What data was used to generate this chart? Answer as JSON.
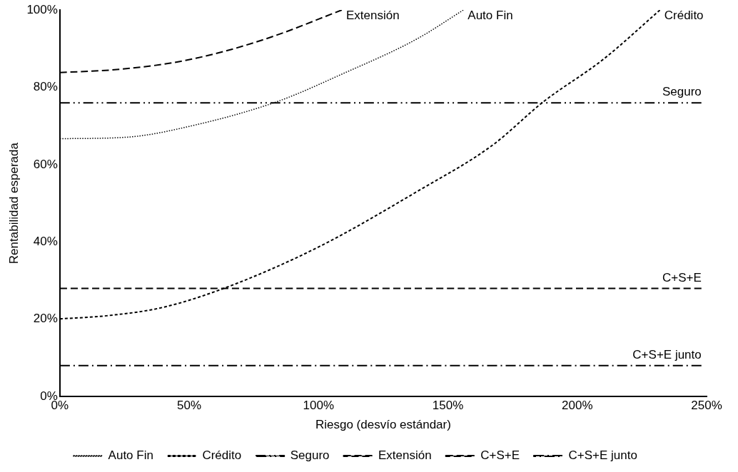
{
  "chart_data": {
    "type": "line",
    "xlabel": "Riesgo (desvío estándar)",
    "ylabel": "Rentabilidad esperada",
    "xlim": [
      0,
      250
    ],
    "ylim": [
      0,
      100
    ],
    "xticks": [
      {
        "value": 0,
        "label": "0%"
      },
      {
        "value": 50,
        "label": "50%"
      },
      {
        "value": 100,
        "label": "100%"
      },
      {
        "value": 150,
        "label": "150%"
      },
      {
        "value": 200,
        "label": "200%"
      },
      {
        "value": 250,
        "label": "250%"
      }
    ],
    "yticks": [
      {
        "value": 0,
        "label": "0%"
      },
      {
        "value": 20,
        "label": "20%"
      },
      {
        "value": 40,
        "label": "40%"
      },
      {
        "value": 60,
        "label": "60%"
      },
      {
        "value": 80,
        "label": "80%"
      },
      {
        "value": 100,
        "label": "100%"
      }
    ],
    "grid": false,
    "legend": "bottom",
    "marker": "none",
    "series": [
      {
        "name": "Auto Fin",
        "color": "#000000",
        "line_style": "dotted",
        "x": [
          0,
          26,
          52,
          84,
          109,
          138,
          156
        ],
        "values": [
          66.7,
          67.1,
          70.2,
          76.3,
          83.4,
          92.5,
          100
        ]
      },
      {
        "name": "Crédito",
        "color": "#000000",
        "line_style": "dashed",
        "x": [
          0,
          18,
          40,
          65,
          100,
          138,
          167,
          187,
          210,
          232
        ],
        "values": [
          20.1,
          20.9,
          23.1,
          28.4,
          38.7,
          53,
          64.9,
          76.3,
          87.2,
          100
        ]
      },
      {
        "name": "Seguro",
        "color": "#000000",
        "line_style": "dashdotdot",
        "x": [
          0,
          248
        ],
        "values": [
          76,
          76
        ]
      },
      {
        "name": "Extensión",
        "color": "#000000",
        "line_style": "longdashed",
        "x": [
          0,
          22,
          44,
          63,
          83,
          109
        ],
        "values": [
          83.8,
          84.6,
          86.4,
          89.2,
          93.3,
          100
        ]
      },
      {
        "name": "C+S+E",
        "color": "#000000",
        "line_style": "longdashed",
        "x": [
          0,
          248
        ],
        "values": [
          28,
          28
        ]
      },
      {
        "name": "C+S+E junto",
        "color": "#000000",
        "line_style": "dashdot",
        "x": [
          0,
          248
        ],
        "values": [
          8,
          8
        ]
      }
    ]
  }
}
